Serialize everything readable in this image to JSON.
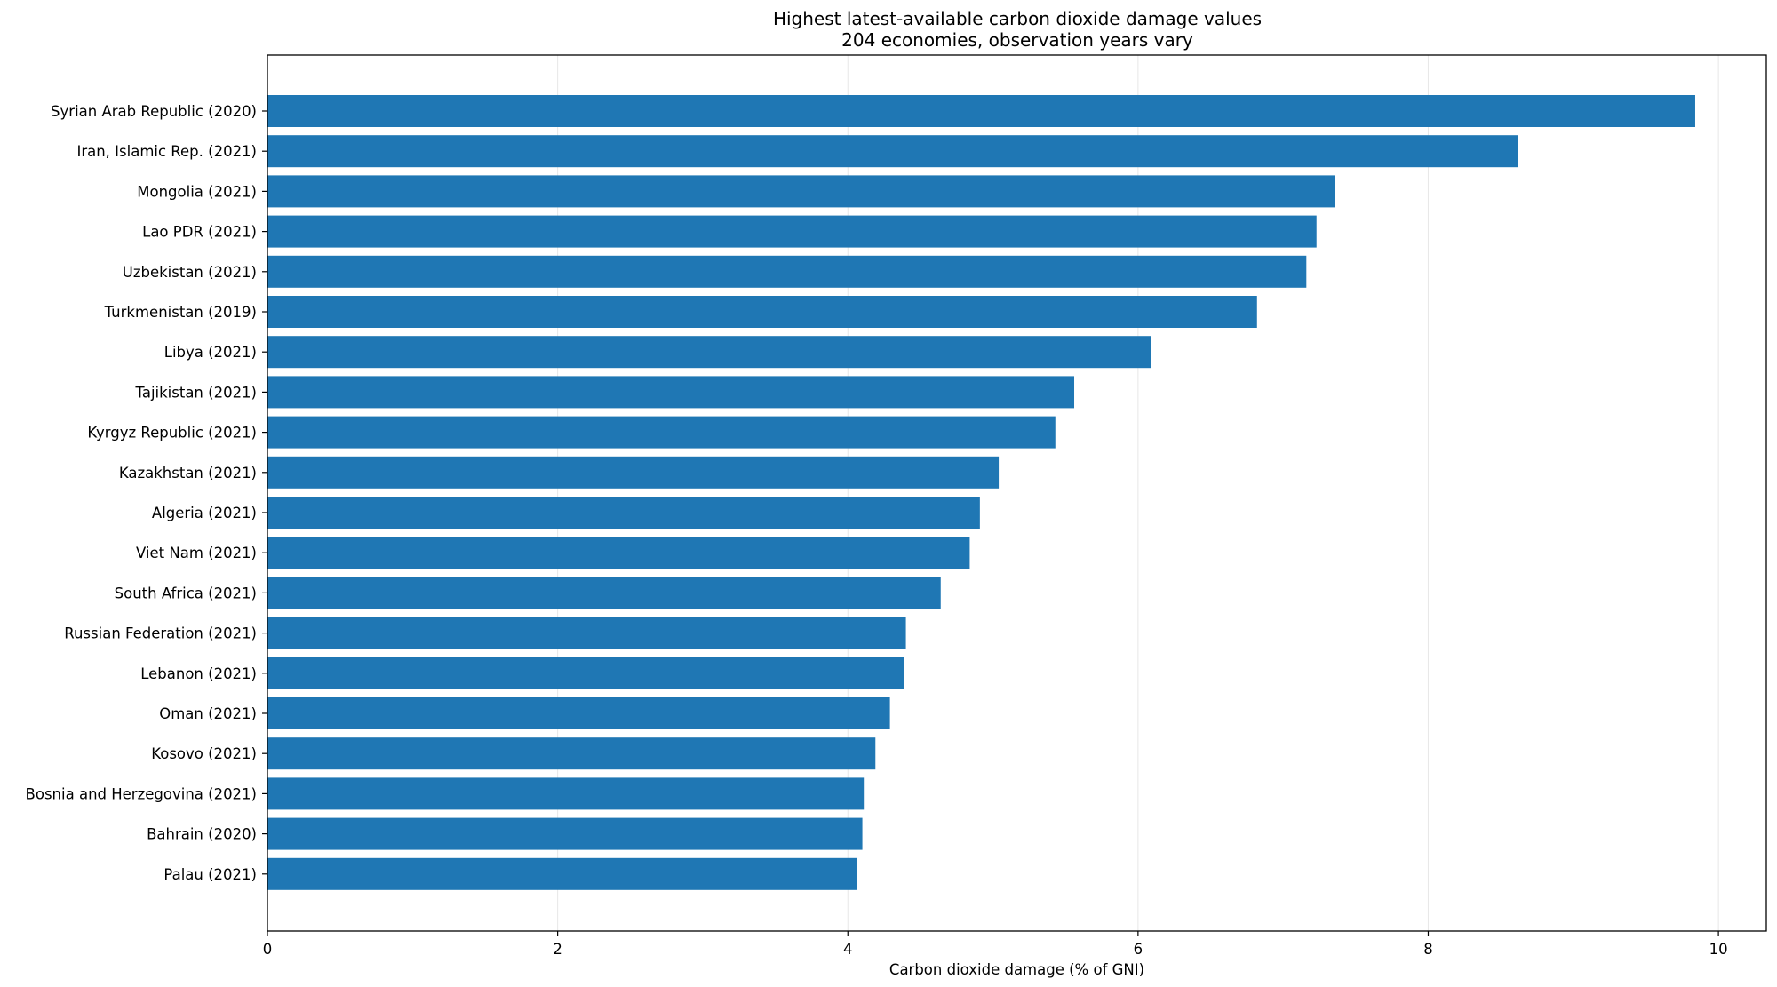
{
  "chart_data": {
    "type": "bar",
    "orientation": "horizontal",
    "title": "Highest latest-available carbon dioxide damage values",
    "subtitle": "204 economies, observation years vary",
    "xlabel": "Carbon dioxide damage (% of GNI)",
    "ylabel": "",
    "xlim": [
      0,
      10.33
    ],
    "xticks": [
      0,
      2,
      4,
      6,
      8,
      10
    ],
    "grid": "x",
    "legend": "none",
    "bar_color": "#1f77b4",
    "categories": [
      "Syrian Arab Republic (2020)",
      "Iran, Islamic Rep. (2021)",
      "Mongolia (2021)",
      "Lao PDR (2021)",
      "Uzbekistan (2021)",
      "Turkmenistan (2019)",
      "Libya (2021)",
      "Tajikistan (2021)",
      "Kyrgyz Republic (2021)",
      "Kazakhstan (2021)",
      "Algeria (2021)",
      "Viet Nam (2021)",
      "South Africa (2021)",
      "Russian Federation (2021)",
      "Lebanon (2021)",
      "Oman (2021)",
      "Kosovo (2021)",
      "Bosnia and Herzegovina (2021)",
      "Bahrain (2020)",
      "Palau (2021)"
    ],
    "values": [
      9.84,
      8.62,
      7.36,
      7.23,
      7.16,
      6.82,
      6.09,
      5.56,
      5.43,
      5.04,
      4.91,
      4.84,
      4.64,
      4.4,
      4.39,
      4.29,
      4.19,
      4.11,
      4.1,
      4.06
    ]
  }
}
